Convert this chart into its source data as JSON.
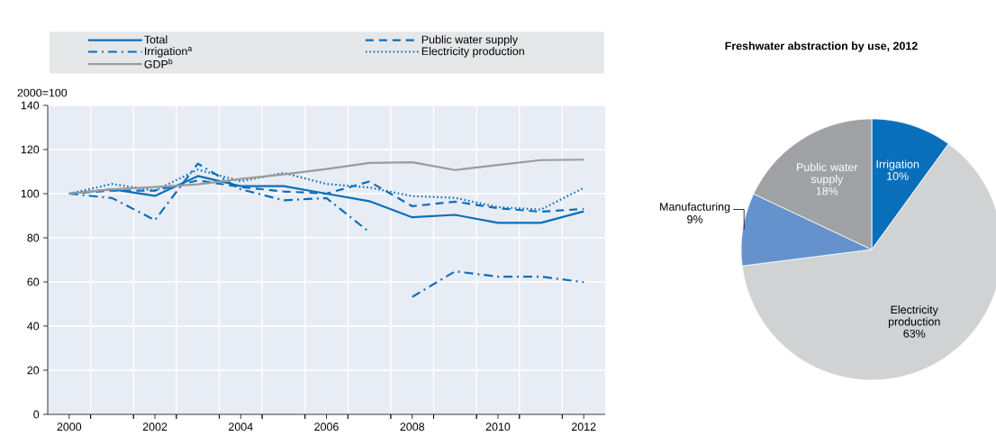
{
  "chart_data": [
    {
      "type": "line",
      "ylabel": "2000=100",
      "xlim": [
        1999.5,
        2012.5
      ],
      "ylim": [
        0,
        140
      ],
      "x": [
        2000,
        2001,
        2002,
        2003,
        2004,
        2005,
        2006,
        2007,
        2008,
        2009,
        2010,
        2011,
        2012
      ],
      "xticks": [
        2000,
        {
          "value": 2000.5,
          "label": null
        },
        {
          "value": 2001.5,
          "label": null
        },
        2002,
        {
          "value": 2002.5,
          "label": null
        },
        {
          "value": 2003.5,
          "label": null
        },
        2004,
        {
          "value": 2004.5,
          "label": null
        },
        {
          "value": 2005.5,
          "label": null
        },
        2006,
        {
          "value": 2006.5,
          "label": null
        },
        {
          "value": 2007.5,
          "label": null
        },
        2008,
        {
          "value": 2008.5,
          "label": null
        },
        {
          "value": 2009.5,
          "label": null
        },
        2010,
        {
          "value": 2010.5,
          "label": null
        },
        {
          "value": 2011.5,
          "label": null
        },
        2012
      ],
      "yticks": [
        0,
        20,
        40,
        60,
        80,
        100,
        120,
        140
      ],
      "grid": true,
      "legend": "top",
      "series": [
        {
          "name": "Total",
          "color": "#0a6fba",
          "line_style": "solid",
          "values": [
            100,
            102,
            99,
            108,
            103.4,
            103.4,
            100,
            96.6,
            89.3,
            90.4,
            86.8,
            86.8,
            92
          ]
        },
        {
          "name": "Public water supply",
          "color": "#0a6fba",
          "line_style": "dashed",
          "values": [
            100,
            101.4,
            101.4,
            106,
            103,
            101,
            100,
            105.5,
            94.3,
            96.4,
            93.4,
            91.8,
            93.1
          ]
        },
        {
          "name": "Irrigation$^{a}$",
          "color": "#0a6fba",
          "line_style": "dashdot",
          "x": [
            2000,
            2001,
            2002,
            2003,
            2004,
            2005,
            2006,
            2007,
            2007.5,
            2008,
            2009,
            2010,
            2011,
            2012
          ],
          "values": [
            100,
            98,
            88,
            113.6,
            102,
            97,
            98,
            82.6,
            null,
            53.2,
            64.8,
            62.4,
            62.4,
            59.9
          ]
        },
        {
          "name": "Electricity production",
          "color": "#0a6fba",
          "line_style": "dotted",
          "values": [
            100,
            104.4,
            101.4,
            110.9,
            105.6,
            109.4,
            104.4,
            102.8,
            98.9,
            98.1,
            93.9,
            92.8,
            102.6
          ]
        },
        {
          "name": "GDP$^{b}$",
          "color": "#9b9b9d",
          "line_style": "solid",
          "values": [
            100,
            102,
            103,
            104.2,
            106.7,
            108.7,
            111.2,
            113.9,
            114.2,
            110.7,
            113,
            115.2,
            115.4
          ]
        }
      ]
    },
    {
      "type": "pie",
      "title": "Freshwater abstraction by use, 2012",
      "categories": [
        "Irrigation",
        "Electricity production",
        "Manufacturing",
        "Public water supply"
      ],
      "values": [
        10,
        63,
        9,
        18
      ],
      "value_labels": [
        "10%",
        "63%",
        "9%",
        "18%"
      ],
      "colors": [
        "#0a6fba",
        "#d1d2d4",
        "#6592cc",
        "#a0a1a4"
      ]
    }
  ]
}
